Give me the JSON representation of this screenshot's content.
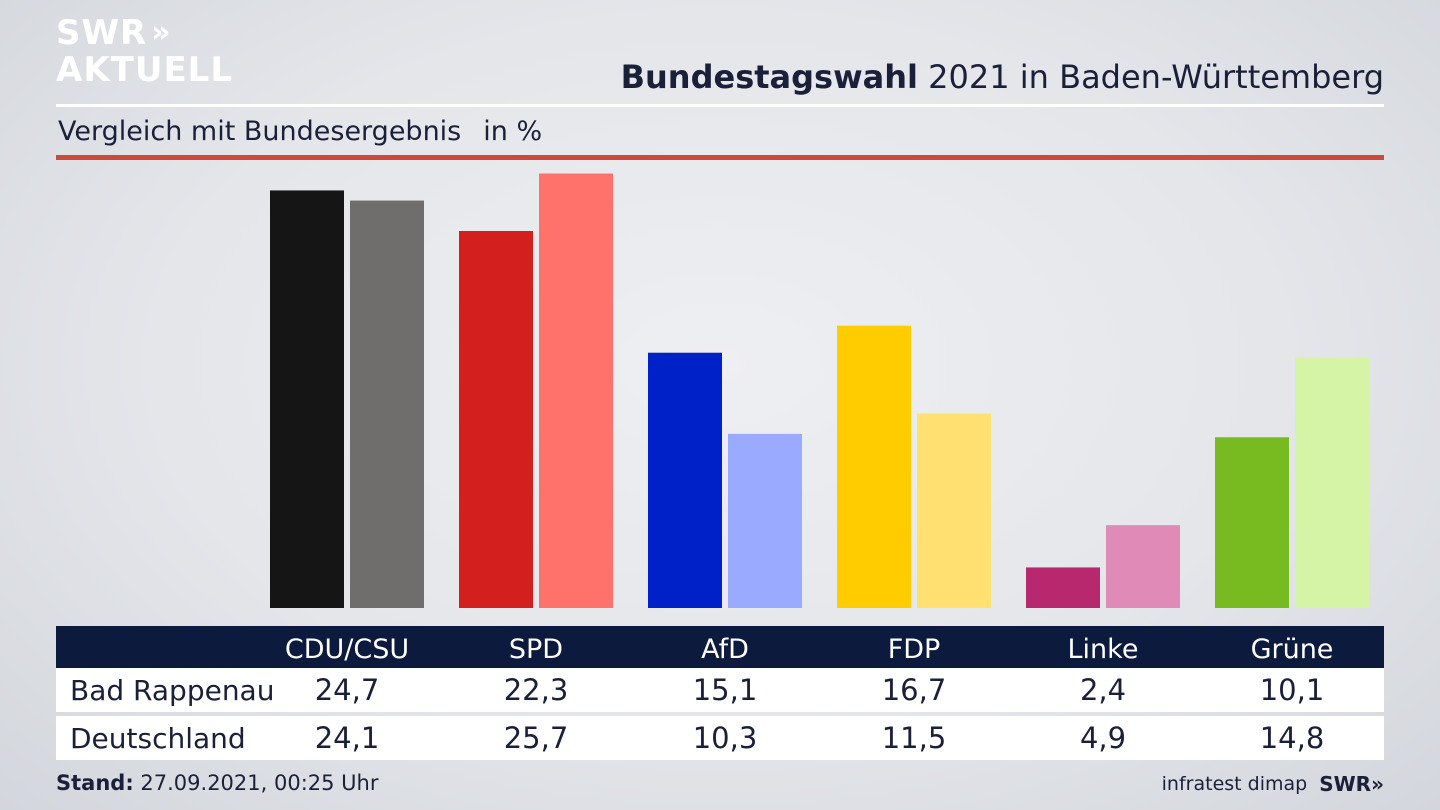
{
  "logo": {
    "line1": "SWR",
    "line1_chevrons": "»",
    "line2": "AKTUELL"
  },
  "header": {
    "title_bold": "Bundestagswahl",
    "title_rest": " 2021 in Baden-Württemberg",
    "subtitle": "Vergleich mit Bundesergebnis",
    "unit": "in %"
  },
  "chart_data": {
    "type": "bar",
    "categories": [
      "CDU/CSU",
      "SPD",
      "AfD",
      "FDP",
      "Linke",
      "Grüne"
    ],
    "series": [
      {
        "name": "Bad Rappenau",
        "values": [
          24.7,
          22.3,
          15.1,
          16.7,
          2.4,
          10.1
        ]
      },
      {
        "name": "Deutschland",
        "values": [
          24.1,
          25.7,
          10.3,
          11.5,
          4.9,
          14.8
        ]
      }
    ],
    "value_labels": [
      [
        "24,7",
        "22,3",
        "15,1",
        "16,7",
        "2,4",
        "10,1"
      ],
      [
        "24,1",
        "25,7",
        "10,3",
        "11,5",
        "4,9",
        "14,8"
      ]
    ],
    "colors": {
      "primary": [
        "#151515",
        "#d41f1f",
        "#0020c8",
        "#ffcc00",
        "#b8286e",
        "#78bb20"
      ],
      "secondary": [
        "#6f6e6d",
        "#ff726c",
        "#9aaaff",
        "#ffe070",
        "#e08ab8",
        "#d5f4a5"
      ]
    },
    "ylim": [
      0,
      26.5
    ],
    "grid": false,
    "legend": "table-below"
  },
  "footer": {
    "stand_label": "Stand:",
    "stand_value": " 27.09.2021, 00:25 Uhr",
    "source": "infratest dimap",
    "brand": "SWR»"
  }
}
